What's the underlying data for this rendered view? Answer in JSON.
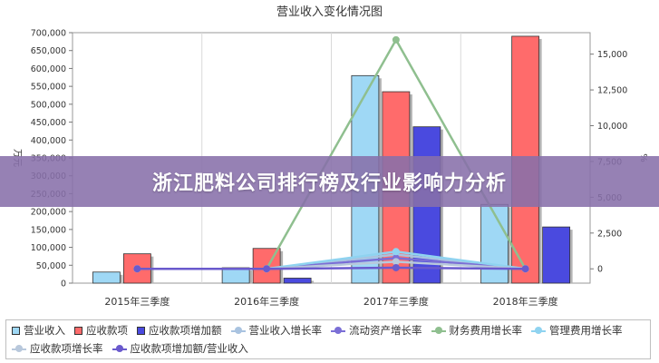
{
  "banner": {
    "text": "浙江肥料公司排行榜及行业影响力分析"
  },
  "chart_data": {
    "type": "bar",
    "title": "营业收入变化情况图",
    "ylabel": "万元",
    "y2label": "%",
    "categories": [
      "2015年三季度",
      "2016年三季度",
      "2017年三季度",
      "2018年三季度"
    ],
    "ylim": [
      0,
      700000
    ],
    "y2lim": [
      -1000,
      16500
    ],
    "yticks": [
      "0",
      "50,000",
      "100,000",
      "150,000",
      "200,000",
      "250,000",
      "300,000",
      "350,000",
      "400,000",
      "450,000",
      "500,000",
      "550,000",
      "600,000",
      "650,000",
      "700,000"
    ],
    "y2ticks": [
      "0",
      "2,500",
      "5,000",
      "7,500",
      "10,000",
      "12,500",
      "15,000"
    ],
    "grid": true,
    "legend_position": "bottom",
    "series": [
      {
        "name": "营业收入",
        "kind": "bar",
        "axis": "left",
        "color": "#9fd8f5",
        "values": [
          31000,
          43000,
          580000,
          220000
        ]
      },
      {
        "name": "应收款项",
        "kind": "bar",
        "axis": "left",
        "color": "#ff6b6b",
        "values": [
          82000,
          97000,
          535000,
          690000
        ]
      },
      {
        "name": "应收款项增加额",
        "kind": "bar",
        "axis": "left",
        "color": "#4a4adf",
        "values": [
          0,
          14000,
          437000,
          157000
        ]
      },
      {
        "name": "营业收入增长率",
        "kind": "line",
        "axis": "right",
        "color": "#a9c3e0",
        "values": [
          0,
          0,
          1000,
          0
        ]
      },
      {
        "name": "流动资产增长率",
        "kind": "line",
        "axis": "right",
        "color": "#7b6fd6",
        "values": [
          0,
          0,
          750,
          0
        ]
      },
      {
        "name": "财务费用增长率",
        "kind": "line",
        "axis": "right",
        "color": "#8fbf8f",
        "values": [
          0,
          0,
          16000,
          0
        ]
      },
      {
        "name": "管理费用增长率",
        "kind": "line",
        "axis": "right",
        "color": "#8fd3f0",
        "values": [
          0,
          0,
          1200,
          0
        ]
      },
      {
        "name": "应收款项增长率",
        "kind": "line",
        "axis": "right",
        "color": "#b8c8dc",
        "values": [
          0,
          0,
          500,
          0
        ]
      },
      {
        "name": "应收款项增加额/营业收入",
        "kind": "line",
        "axis": "right",
        "color": "#6a5acd",
        "values": [
          0,
          0,
          80,
          0
        ]
      }
    ]
  }
}
